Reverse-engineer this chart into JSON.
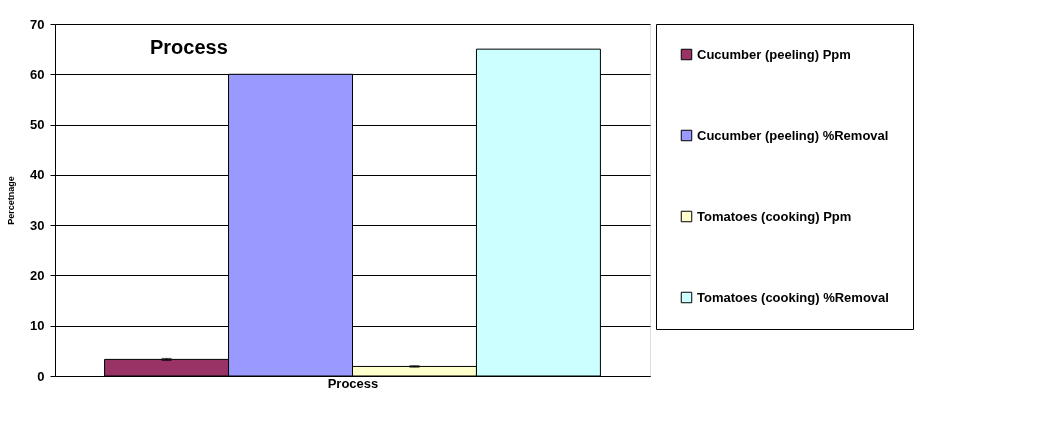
{
  "chart_data": {
    "type": "bar",
    "title": "Process",
    "xlabel": "Process",
    "ylabel": "Percetnage",
    "categories": [
      null
    ],
    "series": [
      {
        "name": "Cucumber (peeling) Ppm",
        "color": "#993366",
        "values": [
          3.3
        ],
        "errors": [
          0.2
        ]
      },
      {
        "name": "Cucumber (peeling) %Removal",
        "color": "#9999ff",
        "values": [
          60
        ]
      },
      {
        "name": "Tomatoes (cooking) Ppm",
        "color": "#ffffcc",
        "values": [
          1.9
        ],
        "errors": [
          0.15
        ]
      },
      {
        "name": "Tomatoes (cooking) %Removal",
        "color": "#ccffff",
        "values": [
          65
        ]
      }
    ],
    "ylim": [
      0,
      70
    ],
    "yticks": [
      0,
      10,
      20,
      30,
      40,
      50,
      60,
      70
    ],
    "grid": "y",
    "legend": "right"
  }
}
